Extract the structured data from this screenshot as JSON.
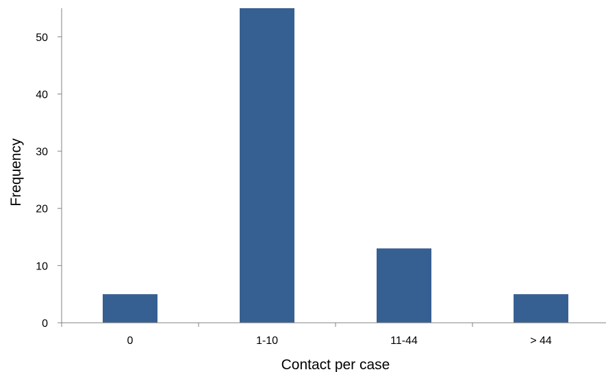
{
  "chart_data": {
    "type": "bar",
    "categories": [
      "0",
      "1-10",
      "11-44",
      "> 44"
    ],
    "values": [
      5,
      55,
      13,
      5
    ],
    "title": "",
    "xlabel": "Contact per case",
    "ylabel": "Frequency",
    "ylim": [
      0,
      55
    ],
    "yticks": [
      0,
      10,
      20,
      30,
      40,
      50
    ],
    "grid": false,
    "legend": "none",
    "bar_color": "#376092"
  }
}
